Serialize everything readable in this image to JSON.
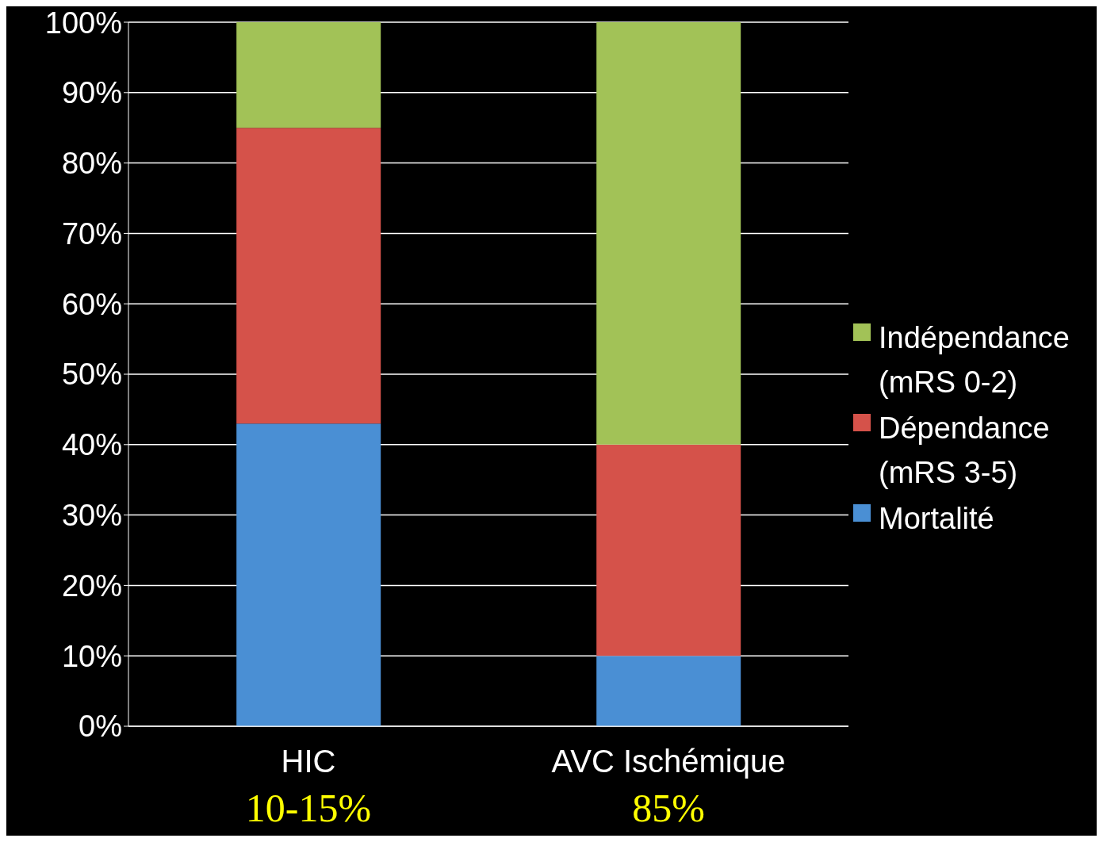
{
  "chart_data": {
    "type": "bar",
    "stacked": true,
    "categories": [
      "HIC",
      "AVC Ischémique"
    ],
    "series": [
      {
        "name": "Mortalité",
        "color": "#4a8fd4",
        "values": [
          43,
          10
        ]
      },
      {
        "name": "Dépendance (mRS 3-5)",
        "color": "#d5524a",
        "values": [
          42,
          30
        ]
      },
      {
        "name": "Indépendance (mRS 0-2)",
        "color": "#a2c257",
        "values": [
          15,
          60
        ]
      }
    ],
    "ylim": [
      0,
      100
    ],
    "yticks": [
      {
        "value": 0,
        "label": "0%"
      },
      {
        "value": 10,
        "label": "10%"
      },
      {
        "value": 20,
        "label": "20%"
      },
      {
        "value": 30,
        "label": "30%"
      },
      {
        "value": 40,
        "label": "40%"
      },
      {
        "value": 50,
        "label": "50%"
      },
      {
        "value": 60,
        "label": "60%"
      },
      {
        "value": 70,
        "label": "70%"
      },
      {
        "value": 80,
        "label": "80%"
      },
      {
        "value": 90,
        "label": "90%"
      },
      {
        "value": 100,
        "label": "100%"
      }
    ],
    "grid": "y",
    "legend": "right",
    "annotations": [
      "10-15%",
      "85%"
    ]
  }
}
